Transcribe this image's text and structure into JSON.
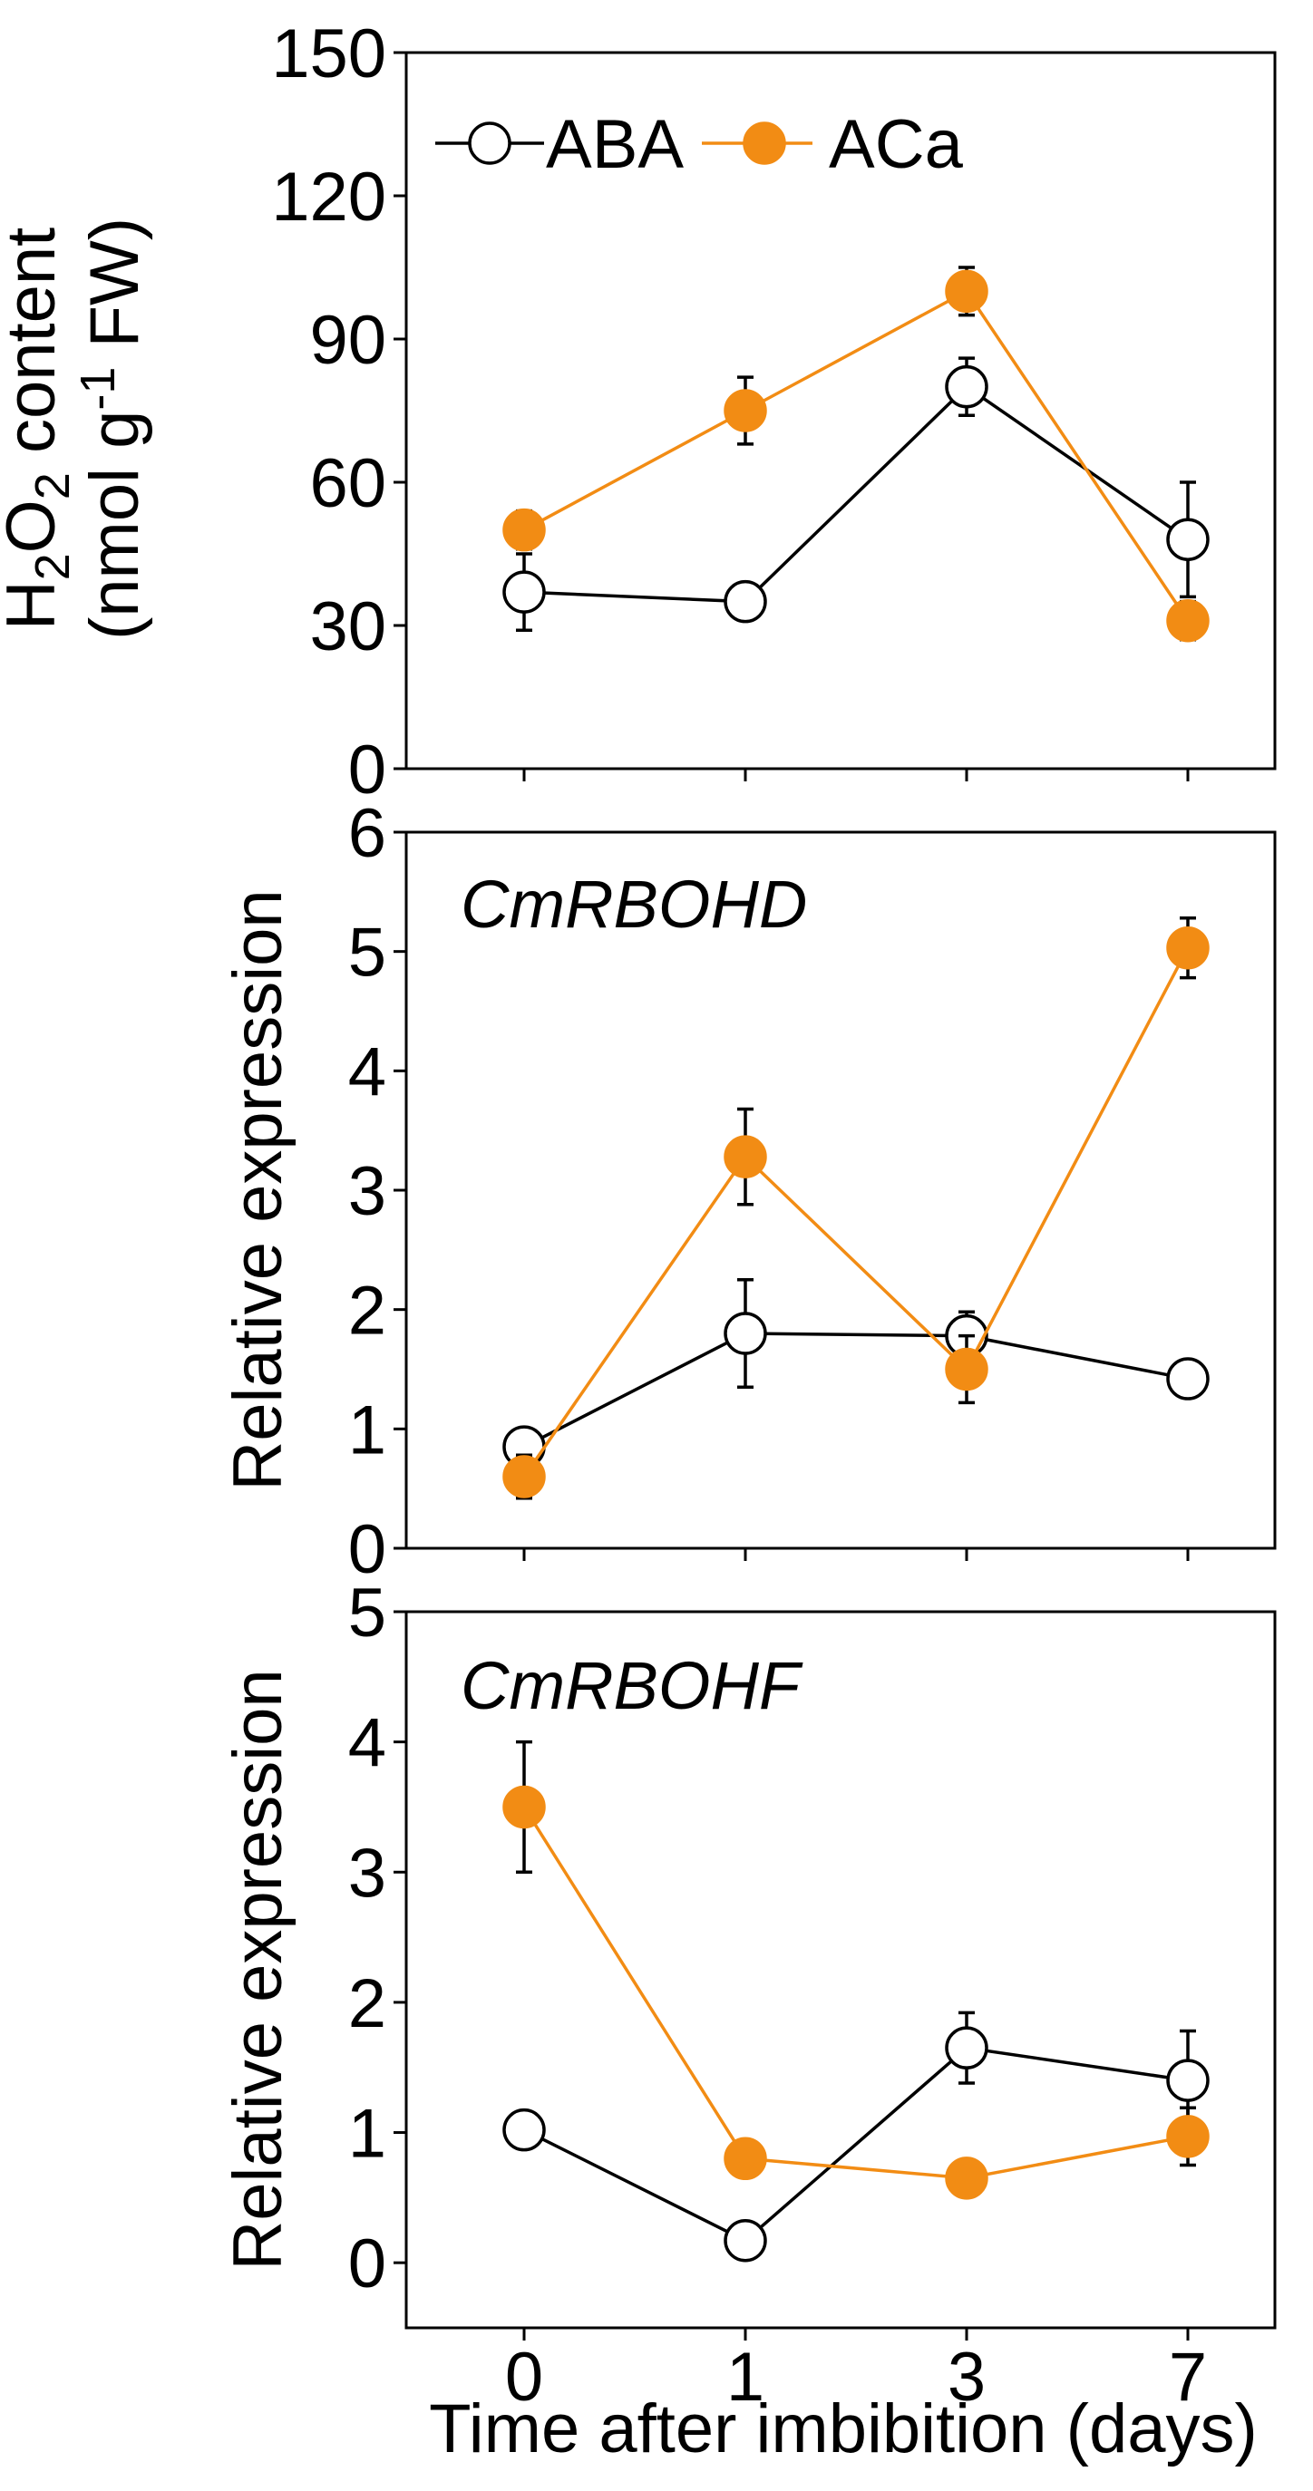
{
  "figure": {
    "x_title": "Time after imbibition (days)",
    "x_categories": [
      "0",
      "1",
      "3",
      "7"
    ]
  },
  "legend": [
    {
      "label": "ABA",
      "marker": "open-circle",
      "color": "#000000"
    },
    {
      "label": "ACa",
      "marker": "filled-circle",
      "color": "#f28c14"
    }
  ],
  "chart_data": [
    {
      "type": "line",
      "panel": "h2o2",
      "title": "",
      "ylabel": "H2O2 content (nmol g-1 FW)",
      "ylabel_parts": {
        "h": "H",
        "sub2a": "2",
        "o": "O",
        "sub2b": "2",
        "rest": " content",
        "line2_start": "(nmol g",
        "sup": "-1",
        "line2_end": " FW)"
      },
      "categories": [
        "0",
        "1",
        "3",
        "7"
      ],
      "ylim": [
        0,
        150
      ],
      "yticks": [
        0,
        30,
        60,
        90,
        120,
        150
      ],
      "series": [
        {
          "name": "ABA",
          "values": [
            37,
            35,
            80,
            48
          ],
          "errors": [
            8,
            3,
            6,
            12
          ]
        },
        {
          "name": "ACa",
          "values": [
            50,
            75,
            100,
            31
          ],
          "errors": [
            4,
            7,
            5,
            4
          ]
        }
      ]
    },
    {
      "type": "line",
      "panel": "rbohd",
      "title": "CmRBOHD",
      "ylabel": "Relative expression",
      "categories": [
        "0",
        "1",
        "3",
        "7"
      ],
      "ylim": [
        0,
        6
      ],
      "yticks": [
        0,
        1,
        2,
        3,
        4,
        5,
        6
      ],
      "series": [
        {
          "name": "ABA",
          "values": [
            0.85,
            1.8,
            1.78,
            1.42
          ],
          "errors": [
            0.12,
            0.45,
            0.2,
            0.08
          ]
        },
        {
          "name": "ACa",
          "values": [
            0.6,
            3.28,
            1.5,
            5.03
          ],
          "errors": [
            0.18,
            0.4,
            0.28,
            0.25
          ]
        }
      ]
    },
    {
      "type": "line",
      "panel": "rbohf",
      "title": "CmRBOHF",
      "ylabel": "Relative expression",
      "categories": [
        "0",
        "1",
        "3",
        "7"
      ],
      "ylim": [
        -0.5,
        5
      ],
      "yticks": [
        0,
        1,
        2,
        3,
        4,
        5
      ],
      "series": [
        {
          "name": "ABA",
          "values": [
            1.02,
            0.17,
            1.65,
            1.4
          ],
          "errors": [
            0.08,
            0.1,
            0.27,
            0.38
          ]
        },
        {
          "name": "ACa",
          "values": [
            3.5,
            0.8,
            0.65,
            0.97
          ],
          "errors": [
            0.5,
            0.12,
            0.1,
            0.22
          ]
        }
      ]
    }
  ]
}
